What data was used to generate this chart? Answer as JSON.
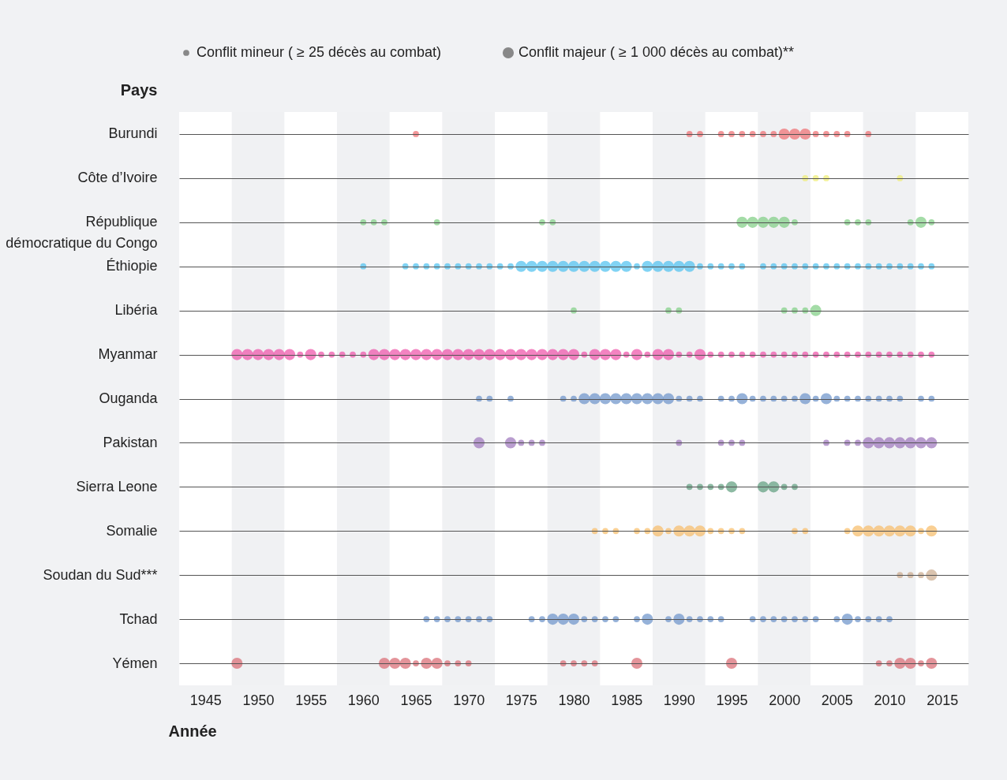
{
  "chart_data": {
    "type": "bubble",
    "orientation": "horizontal",
    "marker": "circle",
    "grid": "y",
    "xlabel": "Année",
    "ylabel": "Pays",
    "categories": [
      "Burundi",
      "Côte d’Ivoire",
      "République démocratique du Congo",
      "Éthiopie",
      "Libéria",
      "Myanmar",
      "Ouganda",
      "Pakistan",
      "Sierra Leone",
      "Somalie",
      "Soudan du Sud***",
      "Tchad",
      "Yémen"
    ],
    "xlim": [
      1942.5,
      2017.5
    ],
    "xticks": [
      1945,
      1950,
      1955,
      1960,
      1965,
      1970,
      1975,
      1980,
      1985,
      1990,
      1995,
      2000,
      2005,
      2010,
      2015
    ],
    "size_legend": [
      {
        "value": 0.3,
        "label": "Conflit mineur ( ≥ 25 décès au combat)"
      },
      {
        "value": 1,
        "label": "Conflit majeur ( ≥ 1 000 décès au combat)**"
      }
    ],
    "bands": [
      {
        "axis": "x",
        "from": 1947.5,
        "to": 1952.5,
        "color": "#f0f1f3"
      },
      {
        "axis": "x",
        "from": 1957.5,
        "to": 1962.5,
        "color": "#f0f1f3"
      },
      {
        "axis": "x",
        "from": 1967.5,
        "to": 1972.5,
        "color": "#f0f1f3"
      },
      {
        "axis": "x",
        "from": 1977.5,
        "to": 1982.5,
        "color": "#f0f1f3"
      },
      {
        "axis": "x",
        "from": 1987.5,
        "to": 1992.5,
        "color": "#f0f1f3"
      },
      {
        "axis": "x",
        "from": 1997.5,
        "to": 2002.5,
        "color": "#f0f1f3"
      },
      {
        "axis": "x",
        "from": 2007.5,
        "to": 2012.5,
        "color": "#f0f1f3"
      }
    ],
    "series": [
      {
        "color": "#ee6b6e",
        "values": [
          1965,
          1991,
          1992,
          1994,
          1995,
          1996,
          1997,
          1998,
          1999,
          2000,
          2001,
          2002,
          2003,
          2004,
          2005,
          2006,
          2008
        ],
        "sizes": [
          0.3,
          0.3,
          0.3,
          0.3,
          0.3,
          0.3,
          0.3,
          0.3,
          0.3,
          1,
          1,
          1,
          0.3,
          0.3,
          0.3,
          0.3,
          0.3
        ],
        "x": [
          "Burundi",
          "Burundi",
          "Burundi",
          "Burundi",
          "Burundi",
          "Burundi",
          "Burundi",
          "Burundi",
          "Burundi",
          "Burundi",
          "Burundi",
          "Burundi",
          "Burundi",
          "Burundi",
          "Burundi",
          "Burundi",
          "Burundi"
        ]
      },
      {
        "color": "#eeec6e",
        "values": [
          2002,
          2003,
          2004,
          2011
        ],
        "sizes": [
          0.3,
          0.3,
          0.3,
          0.3
        ],
        "x": [
          "Côte d’Ivoire",
          "Côte d’Ivoire",
          "Côte d’Ivoire",
          "Côte d’Ivoire"
        ]
      },
      {
        "color": "#7dcd82",
        "values": [
          1960,
          1961,
          1962,
          1967,
          1977,
          1978,
          1996,
          1997,
          1998,
          1999,
          2000,
          2001,
          2006,
          2007,
          2008,
          2012,
          2013,
          2014
        ],
        "sizes": [
          0.3,
          0.3,
          0.3,
          0.3,
          0.3,
          0.3,
          1,
          1,
          1,
          1,
          1,
          0.3,
          0.3,
          0.3,
          0.3,
          0.3,
          1,
          0.3
        ],
        "x": [
          "République démocratique du Congo",
          "République démocratique du Congo",
          "République démocratique du Congo",
          "République démocratique du Congo",
          "République démocratique du Congo",
          "République démocratique du Congo",
          "République démocratique du Congo",
          "République démocratique du Congo",
          "République démocratique du Congo",
          "République démocratique du Congo",
          "République démocratique du Congo",
          "République démocratique du Congo",
          "République démocratique du Congo",
          "République démocratique du Congo",
          "République démocratique du Congo",
          "République démocratique du Congo",
          "République démocratique du Congo",
          "République démocratique du Congo"
        ]
      },
      {
        "color": "#4cc0ef",
        "values": [
          1960,
          1964,
          1965,
          1966,
          1967,
          1968,
          1969,
          1970,
          1971,
          1972,
          1973,
          1974,
          1975,
          1976,
          1977,
          1978,
          1979,
          1980,
          1981,
          1982,
          1983,
          1984,
          1985,
          1986,
          1987,
          1988,
          1989,
          1990,
          1991,
          1992,
          1993,
          1994,
          1995,
          1996,
          1998,
          1999,
          2000,
          2001,
          2002,
          2003,
          2004,
          2005,
          2006,
          2007,
          2008,
          2009,
          2010,
          2011,
          2012,
          2013,
          2014
        ],
        "sizes": [
          0.3,
          0.3,
          0.3,
          0.3,
          0.3,
          0.3,
          0.3,
          0.3,
          0.3,
          0.3,
          0.3,
          0.3,
          1,
          1,
          1,
          1,
          1,
          1,
          1,
          1,
          1,
          1,
          1,
          0.3,
          1,
          1,
          1,
          1,
          1,
          0.3,
          0.3,
          0.3,
          0.3,
          0.3,
          0.3,
          0.3,
          0.3,
          0.3,
          0.3,
          0.3,
          0.3,
          0.3,
          0.3,
          0.3,
          0.3,
          0.3,
          0.3,
          0.3,
          0.3,
          0.3,
          0.3
        ],
        "x": [
          "Éthiopie",
          "Éthiopie",
          "Éthiopie",
          "Éthiopie",
          "Éthiopie",
          "Éthiopie",
          "Éthiopie",
          "Éthiopie",
          "Éthiopie",
          "Éthiopie",
          "Éthiopie",
          "Éthiopie",
          "Éthiopie",
          "Éthiopie",
          "Éthiopie",
          "Éthiopie",
          "Éthiopie",
          "Éthiopie",
          "Éthiopie",
          "Éthiopie",
          "Éthiopie",
          "Éthiopie",
          "Éthiopie",
          "Éthiopie",
          "Éthiopie",
          "Éthiopie",
          "Éthiopie",
          "Éthiopie",
          "Éthiopie",
          "Éthiopie",
          "Éthiopie",
          "Éthiopie",
          "Éthiopie",
          "Éthiopie",
          "Éthiopie",
          "Éthiopie",
          "Éthiopie",
          "Éthiopie",
          "Éthiopie",
          "Éthiopie",
          "Éthiopie",
          "Éthiopie",
          "Éthiopie",
          "Éthiopie",
          "Éthiopie",
          "Éthiopie",
          "Éthiopie",
          "Éthiopie",
          "Éthiopie",
          "Éthiopie",
          "Éthiopie"
        ]
      },
      {
        "color": "#7dcd82",
        "values": [
          1980,
          1989,
          1990,
          2000,
          2001,
          2002,
          2003
        ],
        "sizes": [
          0.3,
          0.3,
          0.3,
          0.3,
          0.3,
          0.3,
          1
        ],
        "x": [
          "Libéria",
          "Libéria",
          "Libéria",
          "Libéria",
          "Libéria",
          "Libéria",
          "Libéria"
        ]
      },
      {
        "color": "#ee4ea6",
        "values": [
          1948,
          1949,
          1950,
          1951,
          1952,
          1953,
          1954,
          1955,
          1956,
          1957,
          1958,
          1959,
          1960,
          1961,
          1962,
          1963,
          1964,
          1965,
          1966,
          1967,
          1968,
          1969,
          1970,
          1971,
          1972,
          1973,
          1974,
          1975,
          1976,
          1977,
          1978,
          1979,
          1980,
          1981,
          1982,
          1983,
          1984,
          1985,
          1986,
          1987,
          1988,
          1989,
          1990,
          1991,
          1992,
          1993,
          1994,
          1995,
          1996,
          1997,
          1998,
          1999,
          2000,
          2001,
          2002,
          2003,
          2004,
          2005,
          2006,
          2007,
          2008,
          2009,
          2010,
          2011,
          2012,
          2013,
          2014
        ],
        "sizes": [
          1,
          1,
          1,
          1,
          1,
          1,
          0.3,
          1,
          0.3,
          0.3,
          0.3,
          0.3,
          0.3,
          1,
          1,
          1,
          1,
          1,
          1,
          1,
          1,
          1,
          1,
          1,
          1,
          1,
          1,
          1,
          1,
          1,
          1,
          1,
          1,
          0.3,
          1,
          1,
          1,
          0.3,
          1,
          0.3,
          1,
          1,
          0.3,
          0.3,
          1,
          0.3,
          0.3,
          0.3,
          0.3,
          0.3,
          0.3,
          0.3,
          0.3,
          0.3,
          0.3,
          0.3,
          0.3,
          0.3,
          0.3,
          0.3,
          0.3,
          0.3,
          0.3,
          0.3,
          0.3,
          0.3,
          0.3
        ],
        "x": [
          "Myanmar",
          "Myanmar",
          "Myanmar",
          "Myanmar",
          "Myanmar",
          "Myanmar",
          "Myanmar",
          "Myanmar",
          "Myanmar",
          "Myanmar",
          "Myanmar",
          "Myanmar",
          "Myanmar",
          "Myanmar",
          "Myanmar",
          "Myanmar",
          "Myanmar",
          "Myanmar",
          "Myanmar",
          "Myanmar",
          "Myanmar",
          "Myanmar",
          "Myanmar",
          "Myanmar",
          "Myanmar",
          "Myanmar",
          "Myanmar",
          "Myanmar",
          "Myanmar",
          "Myanmar",
          "Myanmar",
          "Myanmar",
          "Myanmar",
          "Myanmar",
          "Myanmar",
          "Myanmar",
          "Myanmar",
          "Myanmar",
          "Myanmar",
          "Myanmar",
          "Myanmar",
          "Myanmar",
          "Myanmar",
          "Myanmar",
          "Myanmar",
          "Myanmar",
          "Myanmar",
          "Myanmar",
          "Myanmar",
          "Myanmar",
          "Myanmar",
          "Myanmar",
          "Myanmar",
          "Myanmar",
          "Myanmar",
          "Myanmar",
          "Myanmar",
          "Myanmar",
          "Myanmar",
          "Myanmar",
          "Myanmar",
          "Myanmar",
          "Myanmar",
          "Myanmar",
          "Myanmar",
          "Myanmar",
          "Myanmar"
        ]
      },
      {
        "color": "#6a91c9",
        "values": [
          1971,
          1972,
          1974,
          1979,
          1980,
          1981,
          1982,
          1983,
          1984,
          1985,
          1986,
          1987,
          1988,
          1989,
          1990,
          1991,
          1992,
          1994,
          1995,
          1996,
          1997,
          1998,
          1999,
          2000,
          2001,
          2002,
          2003,
          2004,
          2005,
          2006,
          2007,
          2008,
          2009,
          2010,
          2011,
          2013,
          2014
        ],
        "sizes": [
          0.3,
          0.3,
          0.3,
          0.3,
          0.3,
          1,
          1,
          1,
          1,
          1,
          1,
          1,
          1,
          1,
          0.3,
          0.3,
          0.3,
          0.3,
          0.3,
          1,
          0.3,
          0.3,
          0.3,
          0.3,
          0.3,
          1,
          0.3,
          1,
          0.3,
          0.3,
          0.3,
          0.3,
          0.3,
          0.3,
          0.3,
          0.3,
          0.3
        ],
        "x": [
          "Ouganda",
          "Ouganda",
          "Ouganda",
          "Ouganda",
          "Ouganda",
          "Ouganda",
          "Ouganda",
          "Ouganda",
          "Ouganda",
          "Ouganda",
          "Ouganda",
          "Ouganda",
          "Ouganda",
          "Ouganda",
          "Ouganda",
          "Ouganda",
          "Ouganda",
          "Ouganda",
          "Ouganda",
          "Ouganda",
          "Ouganda",
          "Ouganda",
          "Ouganda",
          "Ouganda",
          "Ouganda",
          "Ouganda",
          "Ouganda",
          "Ouganda",
          "Ouganda",
          "Ouganda",
          "Ouganda",
          "Ouganda",
          "Ouganda",
          "Ouganda",
          "Ouganda",
          "Ouganda",
          "Ouganda"
        ]
      },
      {
        "color": "#9b74ba",
        "values": [
          1971,
          1974,
          1975,
          1976,
          1977,
          1990,
          1994,
          1995,
          1996,
          2004,
          2006,
          2007,
          2008,
          2009,
          2010,
          2011,
          2012,
          2013,
          2014
        ],
        "sizes": [
          1,
          1,
          0.3,
          0.3,
          0.3,
          0.3,
          0.3,
          0.3,
          0.3,
          0.3,
          0.3,
          0.3,
          1,
          1,
          1,
          1,
          1,
          1,
          1
        ],
        "x": [
          "Pakistan",
          "Pakistan",
          "Pakistan",
          "Pakistan",
          "Pakistan",
          "Pakistan",
          "Pakistan",
          "Pakistan",
          "Pakistan",
          "Pakistan",
          "Pakistan",
          "Pakistan",
          "Pakistan",
          "Pakistan",
          "Pakistan",
          "Pakistan",
          "Pakistan",
          "Pakistan",
          "Pakistan"
        ]
      },
      {
        "color": "#5c9d7c",
        "values": [
          1991,
          1992,
          1993,
          1994,
          1995,
          1998,
          1999,
          2000,
          2001
        ],
        "sizes": [
          0.3,
          0.3,
          0.3,
          0.3,
          1,
          1,
          1,
          0.3,
          0.3
        ],
        "x": [
          "Sierra Leone",
          "Sierra Leone",
          "Sierra Leone",
          "Sierra Leone",
          "Sierra Leone",
          "Sierra Leone",
          "Sierra Leone",
          "Sierra Leone",
          "Sierra Leone"
        ]
      },
      {
        "color": "#f6ba65",
        "values": [
          1982,
          1983,
          1984,
          1986,
          1987,
          1988,
          1989,
          1990,
          1991,
          1992,
          1993,
          1994,
          1995,
          1996,
          2001,
          2002,
          2006,
          2007,
          2008,
          2009,
          2010,
          2011,
          2012,
          2013,
          2014
        ],
        "sizes": [
          0.3,
          0.3,
          0.3,
          0.3,
          0.3,
          1,
          0.3,
          1,
          1,
          1,
          0.3,
          0.3,
          0.3,
          0.3,
          0.3,
          0.3,
          0.3,
          1,
          1,
          1,
          1,
          1,
          1,
          0.3,
          1
        ],
        "x": [
          "Somalie",
          "Somalie",
          "Somalie",
          "Somalie",
          "Somalie",
          "Somalie",
          "Somalie",
          "Somalie",
          "Somalie",
          "Somalie",
          "Somalie",
          "Somalie",
          "Somalie",
          "Somalie",
          "Somalie",
          "Somalie",
          "Somalie",
          "Somalie",
          "Somalie",
          "Somalie",
          "Somalie",
          "Somalie",
          "Somalie",
          "Somalie",
          "Somalie"
        ]
      },
      {
        "color": "#cbaa8c",
        "values": [
          2011,
          2012,
          2013,
          2014
        ],
        "sizes": [
          0.3,
          0.3,
          0.3,
          1
        ],
        "x": [
          "Soudan du Sud***",
          "Soudan du Sud***",
          "Soudan du Sud***",
          "Soudan du Sud***"
        ]
      },
      {
        "color": "#6a91c9",
        "values": [
          1966,
          1967,
          1968,
          1969,
          1970,
          1971,
          1972,
          1976,
          1977,
          1978,
          1979,
          1980,
          1981,
          1982,
          1983,
          1984,
          1986,
          1987,
          1989,
          1990,
          1991,
          1992,
          1993,
          1994,
          1997,
          1998,
          1999,
          2000,
          2001,
          2002,
          2003,
          2005,
          2006,
          2007,
          2008,
          2009,
          2010
        ],
        "sizes": [
          0.3,
          0.3,
          0.3,
          0.3,
          0.3,
          0.3,
          0.3,
          0.3,
          0.3,
          1,
          1,
          1,
          0.3,
          0.3,
          0.3,
          0.3,
          0.3,
          1,
          0.3,
          1,
          0.3,
          0.3,
          0.3,
          0.3,
          0.3,
          0.3,
          0.3,
          0.3,
          0.3,
          0.3,
          0.3,
          0.3,
          1,
          0.3,
          0.3,
          0.3,
          0.3
        ],
        "x": [
          "Tchad",
          "Tchad",
          "Tchad",
          "Tchad",
          "Tchad",
          "Tchad",
          "Tchad",
          "Tchad",
          "Tchad",
          "Tchad",
          "Tchad",
          "Tchad",
          "Tchad",
          "Tchad",
          "Tchad",
          "Tchad",
          "Tchad",
          "Tchad",
          "Tchad",
          "Tchad",
          "Tchad",
          "Tchad",
          "Tchad",
          "Tchad",
          "Tchad",
          "Tchad",
          "Tchad",
          "Tchad",
          "Tchad",
          "Tchad",
          "Tchad",
          "Tchad",
          "Tchad",
          "Tchad",
          "Tchad",
          "Tchad",
          "Tchad"
        ]
      },
      {
        "color": "#d9666f",
        "values": [
          1948,
          1962,
          1963,
          1964,
          1965,
          1966,
          1967,
          1968,
          1969,
          1970,
          1979,
          1980,
          1981,
          1982,
          1986,
          1995,
          2009,
          2010,
          2011,
          2012,
          2013,
          2014
        ],
        "sizes": [
          1,
          1,
          1,
          1,
          0.3,
          1,
          1,
          0.3,
          0.3,
          0.3,
          0.3,
          0.3,
          0.3,
          0.3,
          1,
          1,
          0.3,
          0.3,
          1,
          1,
          0.3,
          1
        ],
        "x": [
          "Yémen",
          "Yémen",
          "Yémen",
          "Yémen",
          "Yémen",
          "Yémen",
          "Yémen",
          "Yémen",
          "Yémen",
          "Yémen",
          "Yémen",
          "Yémen",
          "Yémen",
          "Yémen",
          "Yémen",
          "Yémen",
          "Yémen",
          "Yémen",
          "Yémen",
          "Yémen",
          "Yémen",
          "Yémen"
        ]
      }
    ]
  }
}
